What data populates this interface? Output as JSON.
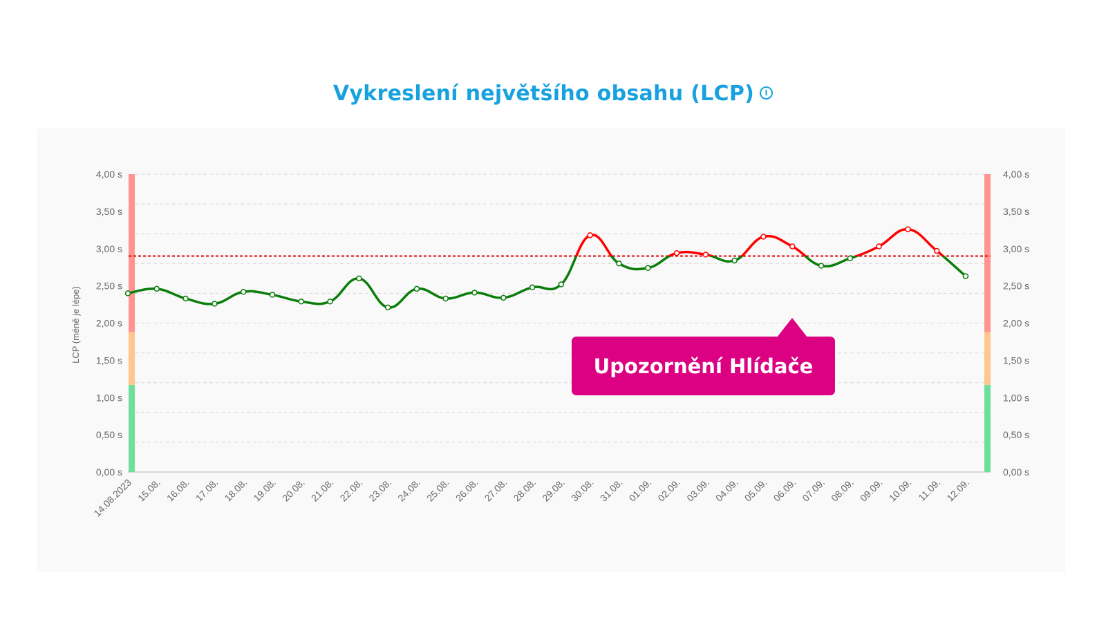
{
  "header": {
    "title": "Vykreslení největšího obsahu (LCP)",
    "info_icon": "info-icon",
    "title_color": "#17a2df"
  },
  "callout": {
    "label": "Upozornění Hlídače",
    "color": "#dc0082"
  },
  "chart_data": {
    "type": "line",
    "title": "Vykreslení největšího obsahu (LCP)",
    "xlabel": "",
    "ylabel": "LCP (méně je lépe)",
    "ylim": [
      0,
      4
    ],
    "y_ticks": [
      "0,00 s",
      "0,50 s",
      "1,00 s",
      "1,50 s",
      "2,00 s",
      "2,50 s",
      "3,00 s",
      "3,50 s",
      "4,00 s"
    ],
    "categories": [
      "14.08.2023",
      "15.08.",
      "16.08.",
      "17.08.",
      "18.08.",
      "19.08.",
      "20.08.",
      "21.08.",
      "22.08.",
      "23.08.",
      "24.08.",
      "25.08.",
      "26.08.",
      "27.08.",
      "28.08.",
      "29.08.",
      "30.08.",
      "31.08.",
      "01.09.",
      "02.09.",
      "03.09.",
      "04.09.",
      "05.09.",
      "06.09.",
      "07.09.",
      "08.09.",
      "09.09.",
      "10.09.",
      "11.09.",
      "12.09."
    ],
    "series": [
      {
        "name": "LCP",
        "values": [
          2.4,
          2.46,
          2.33,
          2.26,
          2.42,
          2.38,
          2.29,
          2.29,
          2.6,
          2.21,
          2.46,
          2.33,
          2.41,
          2.34,
          2.48,
          2.52,
          3.18,
          2.8,
          2.74,
          2.94,
          2.92,
          2.84,
          3.16,
          3.03,
          2.77,
          2.87,
          3.03,
          3.26,
          2.97,
          2.63
        ],
        "color_below_threshold": "#0a7d0a",
        "color_above_threshold": "#ff0000"
      }
    ],
    "threshold": {
      "value": 2.9,
      "color": "#e00000",
      "style": "dashed"
    },
    "bands": [
      {
        "from": 0,
        "to": 1.17,
        "color": "#6ee09a",
        "label": "good"
      },
      {
        "from": 1.17,
        "to": 1.88,
        "color": "#ffc68e",
        "label": "needs-improvement"
      },
      {
        "from": 1.88,
        "to": 4.0,
        "color": "#ff9490",
        "label": "poor"
      }
    ],
    "grid": true,
    "grid_lines": 10,
    "legend": "none"
  }
}
